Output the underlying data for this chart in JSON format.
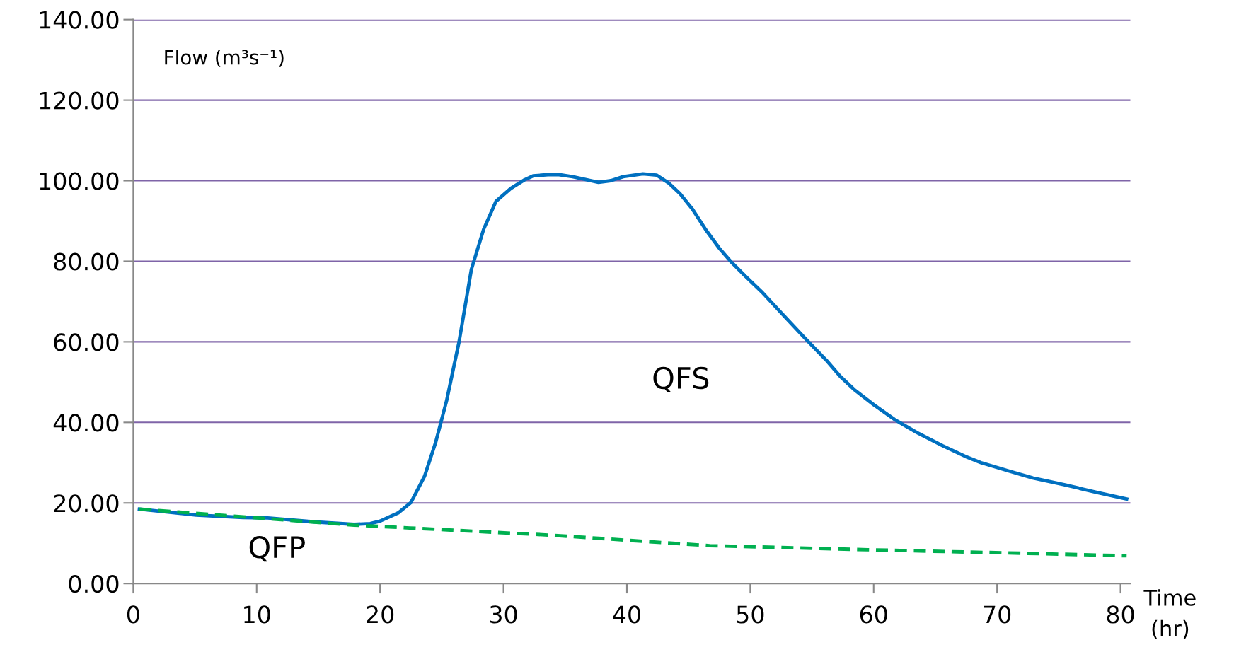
{
  "chart_data": {
    "type": "line",
    "xlabel": "Time\n(hr)",
    "ylabel": "Flow (m³s⁻¹)",
    "xlim": [
      0,
      80.8
    ],
    "xticks": [
      0,
      10,
      20,
      30,
      40,
      50,
      60,
      70,
      80
    ],
    "ylim": [
      0,
      140
    ],
    "yticks": [
      {
        "value": 0,
        "label": "0.00"
      },
      {
        "value": 20,
        "label": "20.00"
      },
      {
        "value": 40,
        "label": "40.00"
      },
      {
        "value": 60,
        "label": "60.00"
      },
      {
        "value": 80,
        "label": "80.00"
      },
      {
        "value": 100,
        "label": "100.00"
      },
      {
        "value": 120,
        "label": "120.00"
      },
      {
        "value": 140,
        "label": "140.00"
      }
    ],
    "grid": "y",
    "legend": false,
    "series": [
      {
        "color": "#0070c0",
        "line_style": "solid",
        "x": [
          0.5,
          5.1,
          8.9,
          10.9,
          14.7,
          17.9,
          19.2,
          20.0,
          21.5,
          22.5,
          23.6,
          24.5,
          25.4,
          26.4,
          27.4,
          28.4,
          29.4,
          30.6,
          31.7,
          32.4,
          33.6,
          34.5,
          35.6,
          37.7,
          38.7,
          39.7,
          41.3,
          42.4,
          43.4,
          44.3,
          45.3,
          46.4,
          47.5,
          48.4,
          49.6,
          50.9,
          52.6,
          54.4,
          56.2,
          57.3,
          58.4,
          60.0,
          61.7,
          63.5,
          65.6,
          67.4,
          68.7,
          71.0,
          72.9,
          75.5,
          78.1,
          80.5
        ],
        "values": [
          18.5,
          17,
          16.4,
          16.3,
          15.3,
          14.7,
          14.9,
          15.5,
          17.6,
          20.1,
          26.6,
          35,
          45.5,
          60,
          78,
          88,
          94.9,
          98.1,
          100.2,
          101.2,
          101.5,
          101.5,
          101,
          99.6,
          100,
          101,
          101.7,
          101.4,
          99.4,
          96.8,
          93,
          87.8,
          83.2,
          80,
          76.3,
          72.5,
          66.9,
          61,
          55.3,
          51.4,
          48.2,
          44.4,
          40.7,
          37.5,
          34.2,
          31.6,
          30,
          27.9,
          26.2,
          24.5,
          22.6,
          21.0
        ]
      },
      {
        "color": "#00b050",
        "line_style": "dashed",
        "x": [
          0.5,
          17.9,
          22.4,
          33.9,
          46.7,
          59.5,
          72.3,
          80.5
        ],
        "values": [
          18.5,
          14.5,
          13.8,
          12.0,
          9.4,
          8.4,
          7.5,
          6.9
        ]
      }
    ],
    "annotations": [
      "QFS",
      "QFP"
    ]
  }
}
